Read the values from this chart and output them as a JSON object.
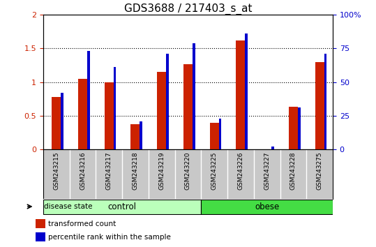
{
  "title": "GDS3688 / 217403_s_at",
  "samples": [
    "GSM243215",
    "GSM243216",
    "GSM243217",
    "GSM243218",
    "GSM243219",
    "GSM243220",
    "GSM243225",
    "GSM243226",
    "GSM243227",
    "GSM243228",
    "GSM243275"
  ],
  "transformed_count": [
    0.78,
    1.05,
    1.0,
    0.38,
    1.15,
    1.27,
    0.4,
    1.62,
    0.0,
    0.63,
    1.3
  ],
  "percentile_rank_scaled": [
    0.84,
    1.46,
    1.22,
    0.42,
    1.42,
    1.58,
    0.46,
    1.72,
    0.04,
    0.62,
    1.42
  ],
  "ylim_left": [
    0,
    2
  ],
  "ylim_right": [
    0,
    100
  ],
  "yticks_left": [
    0,
    0.5,
    1.0,
    1.5,
    2.0
  ],
  "ytick_labels_left": [
    "0",
    "0.5",
    "1",
    "1.5",
    "2"
  ],
  "yticks_right": [
    0,
    25,
    50,
    75,
    100
  ],
  "ytick_labels_right": [
    "0",
    "25",
    "50",
    "75",
    "100%"
  ],
  "bar_color_red": "#CC2200",
  "bar_color_blue": "#0000CC",
  "legend_red": "transformed count",
  "legend_blue": "percentile rank within the sample",
  "disease_state_label": "disease state",
  "tick_area_bg": "#C8C8C8",
  "control_bg": "#BBFFBB",
  "obese_bg": "#44DD44",
  "control_indices": [
    0,
    1,
    2,
    3,
    4,
    5
  ],
  "obese_indices": [
    6,
    7,
    8,
    9,
    10
  ],
  "control_label": "control",
  "obese_label": "obese",
  "n_samples": 11
}
